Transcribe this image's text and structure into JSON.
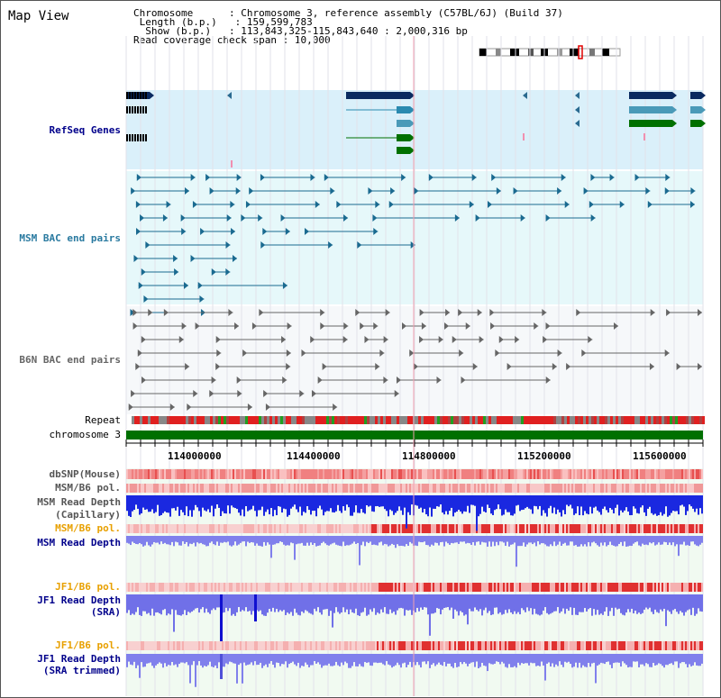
{
  "title": "Map View",
  "info": {
    "chromosome_key": "Chromosome",
    "chromosome_val": "Chromosome 3, reference assembly (C57BL/6J) (Build 37)",
    "length_key": "Length (b.p.)",
    "length_val": "159,599,783",
    "show_key": "Show (b.p.)",
    "show_val": "113,843,325-115,843,640 : 2,000,316 bp",
    "coverage_key": "Read coverage check span",
    "coverage_val": "10,000"
  },
  "tracks": {
    "refseq": "RefSeq Genes",
    "msm_bac": "MSM BAC end pairs",
    "b6n_bac": "B6N BAC end pairs",
    "repeat": "Repeat",
    "chromosome": "chromosome 3",
    "dbsnp": "dbSNP(Mouse)",
    "msm_b6_pol_1": "MSM/B6 pol.",
    "msm_read_depth_cap_1": "MSM Read Depth",
    "msm_read_depth_cap_2": "(Capillary)",
    "msm_b6_pol_2": "MSM/B6 pol.",
    "msm_read_depth_sra": "MSM Read Depth",
    "jf1_b6_pol_1": "JF1/B6 pol.",
    "jf1_read_depth_1": "JF1 Read Depth",
    "jf1_read_depth_1b": "(SRA)",
    "jf1_b6_pol_2": "JF1/B6 pol.",
    "jf1_read_depth_2": "JF1 Read Depth",
    "jf1_read_depth_2b": "(SRA trimmed)"
  },
  "axis_ticks": [
    "114000000",
    "114400000",
    "114800000",
    "115200000",
    "115600000"
  ],
  "colors": {
    "refseq_bg": "#daf0fa",
    "bac_bg": "#e4f8fa",
    "msm_label": "#2a7aa0",
    "navy": "#00008b",
    "orange": "#e8a000",
    "chromosome_green": "#007000"
  }
}
